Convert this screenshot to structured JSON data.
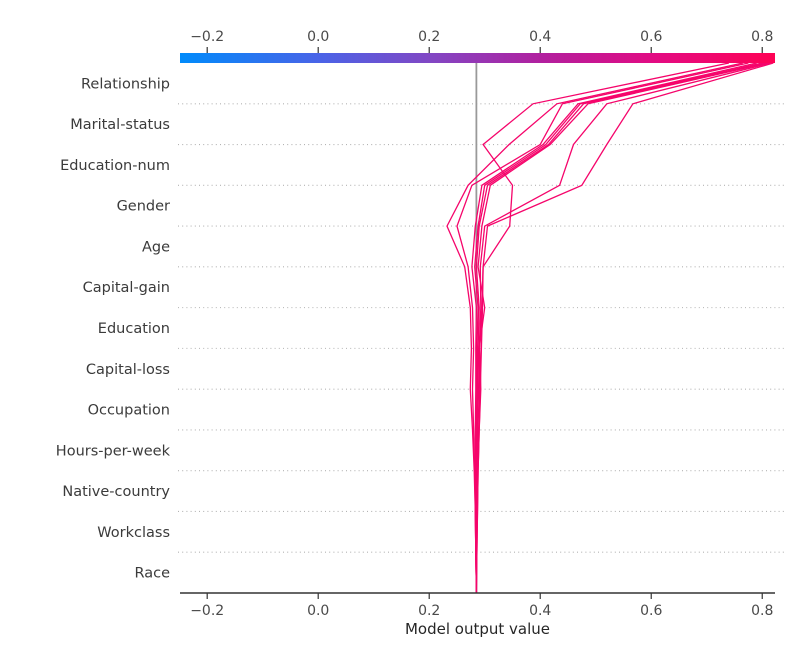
{
  "figure": {
    "background": "#ffffff",
    "kind": "SHAP decision plot"
  },
  "chart_data": {
    "type": "line",
    "chart_kind": "shap-decision-plot",
    "title": "",
    "xlabel": "Model output value",
    "ylabel": "",
    "xlim": [
      -0.249,
      0.823
    ],
    "xticks": [
      -0.2,
      0.0,
      0.2,
      0.4,
      0.6,
      0.8
    ],
    "xtick_labels": [
      "−0.2",
      "0.0",
      "0.2",
      "0.4",
      "0.6",
      "0.8"
    ],
    "grid": "dotted-horizontal",
    "legend": "none",
    "features_top_to_bottom": [
      "Relationship",
      "Marital-status",
      "Education-num",
      "Gender",
      "Age",
      "Capital-gain",
      "Education",
      "Capital-loss",
      "Occupation",
      "Hours-per-week",
      "Native-country",
      "Workclass",
      "Race"
    ],
    "base_value": 0.285,
    "values_meaning": "cumulative model output starting at base value (bottom axis) and adding one feature contribution per level moving upward; top end of each path is the final model output for that observation",
    "line_color": "#f5056b",
    "baseline_color": "#999999",
    "gridline_color": "#b3b3b3",
    "axis_color": "#333333",
    "colorbar": {
      "position": "top",
      "min": -0.249,
      "max": 0.823,
      "tick_labels": [
        "−0.2",
        "0.0",
        "0.2",
        "0.4",
        "0.6",
        "0.8"
      ],
      "gradient_stops": [
        {
          "pos": 0.0,
          "color": "#008bfb"
        },
        {
          "pos": 0.235,
          "color": "#4a63e7"
        },
        {
          "pos": 0.42,
          "color": "#8147c4"
        },
        {
          "pos": 0.61,
          "color": "#b21f9e"
        },
        {
          "pos": 0.8,
          "color": "#e30b82"
        },
        {
          "pos": 1.0,
          "color": "#ff0255"
        }
      ]
    },
    "series": [
      {
        "name": "observation-1",
        "final_value": 0.82,
        "values": [
          0.285,
          0.286,
          0.287,
          0.288,
          0.29,
          0.293,
          0.291,
          0.295,
          0.297,
          0.305,
          0.475,
          0.52,
          0.567,
          0.82
        ]
      },
      {
        "name": "observation-2",
        "final_value": 0.815,
        "values": [
          0.285,
          0.285,
          0.286,
          0.287,
          0.289,
          0.291,
          0.29,
          0.293,
          0.292,
          0.3,
          0.435,
          0.46,
          0.52,
          0.815
        ]
      },
      {
        "name": "observation-3",
        "final_value": 0.81,
        "values": [
          0.285,
          0.285,
          0.285,
          0.286,
          0.287,
          0.289,
          0.29,
          0.3,
          0.288,
          0.295,
          0.31,
          0.418,
          0.486,
          0.81
        ]
      },
      {
        "name": "observation-4",
        "final_value": 0.805,
        "values": [
          0.285,
          0.284,
          0.285,
          0.285,
          0.286,
          0.287,
          0.288,
          0.29,
          0.285,
          0.29,
          0.305,
          0.415,
          0.478,
          0.805
        ]
      },
      {
        "name": "observation-5",
        "final_value": 0.8,
        "values": [
          0.285,
          0.284,
          0.284,
          0.284,
          0.285,
          0.286,
          0.286,
          0.288,
          0.282,
          0.288,
          0.3,
          0.41,
          0.472,
          0.8
        ]
      },
      {
        "name": "observation-6",
        "final_value": 0.79,
        "values": [
          0.285,
          0.284,
          0.283,
          0.283,
          0.283,
          0.284,
          0.284,
          0.285,
          0.277,
          0.283,
          0.295,
          0.405,
          0.468,
          0.79
        ]
      },
      {
        "name": "observation-7",
        "final_value": 0.775,
        "values": [
          0.285,
          0.284,
          0.283,
          0.282,
          0.28,
          0.278,
          0.28,
          0.278,
          0.27,
          0.25,
          0.277,
          0.4,
          0.44,
          0.775
        ]
      },
      {
        "name": "observation-8",
        "final_value": 0.765,
        "values": [
          0.285,
          0.284,
          0.283,
          0.281,
          0.278,
          0.274,
          0.276,
          0.274,
          0.264,
          0.232,
          0.27,
          0.344,
          0.43,
          0.765
        ]
      },
      {
        "name": "observation-9",
        "final_value": 0.74,
        "values": [
          0.285,
          0.286,
          0.287,
          0.288,
          0.29,
          0.292,
          0.294,
          0.296,
          0.297,
          0.345,
          0.35,
          0.297,
          0.387,
          0.74
        ]
      }
    ]
  }
}
